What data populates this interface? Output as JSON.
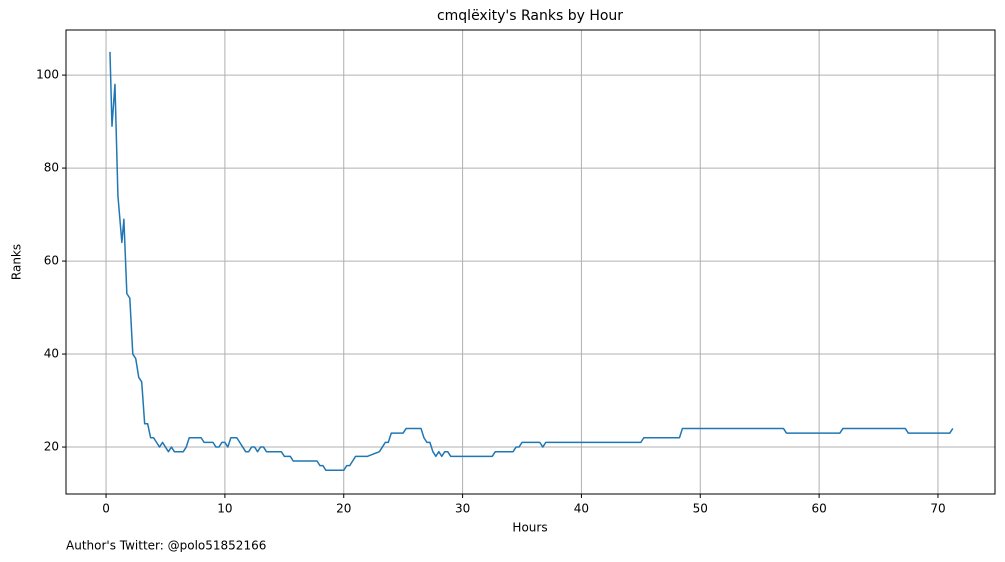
{
  "chart_data": {
    "type": "line",
    "title": "cmqlëxity's Ranks by Hour",
    "xlabel": "Hours",
    "ylabel": "Ranks",
    "annotation": "Author's Twitter: @polo51852166",
    "x": [
      0.33,
      0.5,
      0.75,
      1.0,
      1.33,
      1.5,
      1.75,
      2.0,
      2.25,
      2.5,
      2.75,
      3.0,
      3.25,
      3.5,
      3.75,
      4.0,
      4.25,
      4.5,
      4.75,
      5.0,
      5.25,
      5.5,
      5.75,
      6.5,
      6.75,
      7.0,
      8.0,
      8.25,
      9.0,
      9.25,
      9.5,
      9.75,
      10.0,
      10.25,
      10.5,
      11.0,
      11.25,
      11.5,
      11.75,
      12.0,
      12.25,
      12.5,
      12.75,
      13.0,
      13.25,
      13.5,
      14.75,
      15.0,
      15.5,
      15.75,
      17.75,
      18.0,
      18.25,
      18.5,
      20.0,
      20.25,
      20.5,
      20.75,
      21.0,
      22.0,
      23.0,
      23.25,
      23.5,
      23.75,
      24.0,
      25.0,
      25.25,
      26.5,
      26.75,
      27.0,
      27.25,
      27.5,
      27.75,
      28.0,
      28.25,
      28.5,
      28.75,
      29.0,
      32.5,
      32.75,
      34.25,
      34.5,
      34.75,
      35.0,
      36.5,
      36.75,
      37.0,
      45.0,
      45.25,
      48.25,
      48.5,
      57.0,
      57.25,
      61.75,
      62.0,
      67.25,
      67.5,
      71.0,
      71.25
    ],
    "series": [
      {
        "name": "Ranks",
        "color": "#1f77b4",
        "values": [
          105,
          89,
          98,
          74,
          64,
          69,
          53,
          52,
          40,
          39,
          35,
          34,
          25,
          25,
          22,
          22,
          21,
          20,
          21,
          20,
          19,
          20,
          19,
          19,
          20,
          22,
          22,
          21,
          21,
          20,
          20,
          21,
          21,
          20,
          22,
          22,
          21,
          20,
          19,
          19,
          20,
          20,
          19,
          20,
          20,
          19,
          19,
          18,
          18,
          17,
          17,
          16,
          16,
          15,
          15,
          16,
          16,
          17,
          18,
          18,
          19,
          20,
          21,
          21,
          23,
          23,
          24,
          24,
          22,
          21,
          21,
          19,
          18,
          19,
          18,
          19,
          19,
          18,
          18,
          19,
          19,
          20,
          20,
          21,
          21,
          20,
          21,
          21,
          22,
          22,
          24,
          24,
          23,
          23,
          24,
          24,
          23,
          23,
          24
        ]
      }
    ],
    "xlim": [
      -3.37,
      74.8
    ],
    "ylim": [
      9.9,
      109.7
    ],
    "xticks": [
      0,
      10,
      20,
      30,
      40,
      50,
      60,
      70
    ],
    "yticks": [
      20,
      40,
      60,
      80,
      100
    ],
    "grid": true
  }
}
